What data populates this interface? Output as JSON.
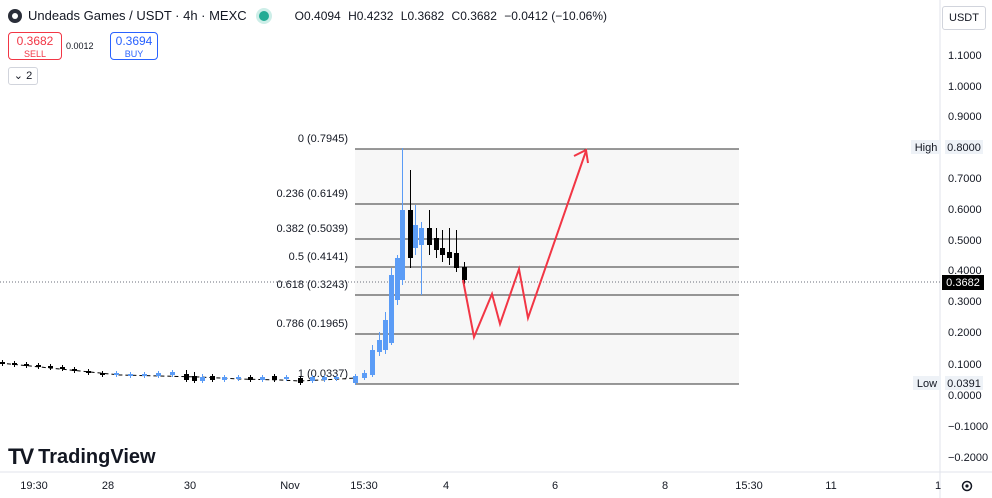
{
  "header": {
    "symbol_title": "Undeads Games / USDT · 4h · MEXC",
    "ohlc": {
      "o_label": "O",
      "o_value": "0.4094",
      "h_label": "H",
      "h_value": "0.4232",
      "l_label": "L",
      "l_value": "0.3682",
      "c_label": "C",
      "c_value": "0.3682",
      "change": "−0.0412 (−10.06%)"
    },
    "live_dot_color": "#22ab94",
    "currency": "USDT"
  },
  "trade": {
    "sell_price": "0.3682",
    "sell_label": "SELL",
    "spread": "0.0012",
    "buy_price": "0.3694",
    "buy_label": "BUY"
  },
  "indicators_toggle": {
    "icon": "chevron-down-icon",
    "count": "2"
  },
  "price_axis": {
    "ticks": [
      "1.1000",
      "1.0000",
      "0.9000",
      "0.8000",
      "0.7000",
      "0.6000",
      "0.5000",
      "0.4000",
      "0.3000",
      "0.2000",
      "0.1000",
      "0.0000",
      "−0.1000",
      "−0.2000"
    ],
    "current_price": "0.3682",
    "high_label": "High",
    "high_value": "0.8000",
    "low_label": "Low",
    "low_value": "0.0391"
  },
  "time_axis": [
    "19:30",
    "28",
    "30",
    "Nov",
    "15:30",
    "4",
    "6",
    "8",
    "15:30",
    "11",
    "1"
  ],
  "fib_levels": [
    {
      "label": "0 (0.7945)"
    },
    {
      "label": "0.236 (0.6149)"
    },
    {
      "label": "0.382 (0.5039)"
    },
    {
      "label": "0.5 (0.4141)"
    },
    {
      "label": "0.618 (0.3243)"
    },
    {
      "label": "0.786 (0.1965)"
    },
    {
      "label": "1 (0.0337)"
    }
  ],
  "logo_text": "TradingView",
  "colors": {
    "up": "#5b9cf6",
    "down": "#000000",
    "projection": "#f23645",
    "sell": "#f23645",
    "buy": "#2962ff"
  }
}
